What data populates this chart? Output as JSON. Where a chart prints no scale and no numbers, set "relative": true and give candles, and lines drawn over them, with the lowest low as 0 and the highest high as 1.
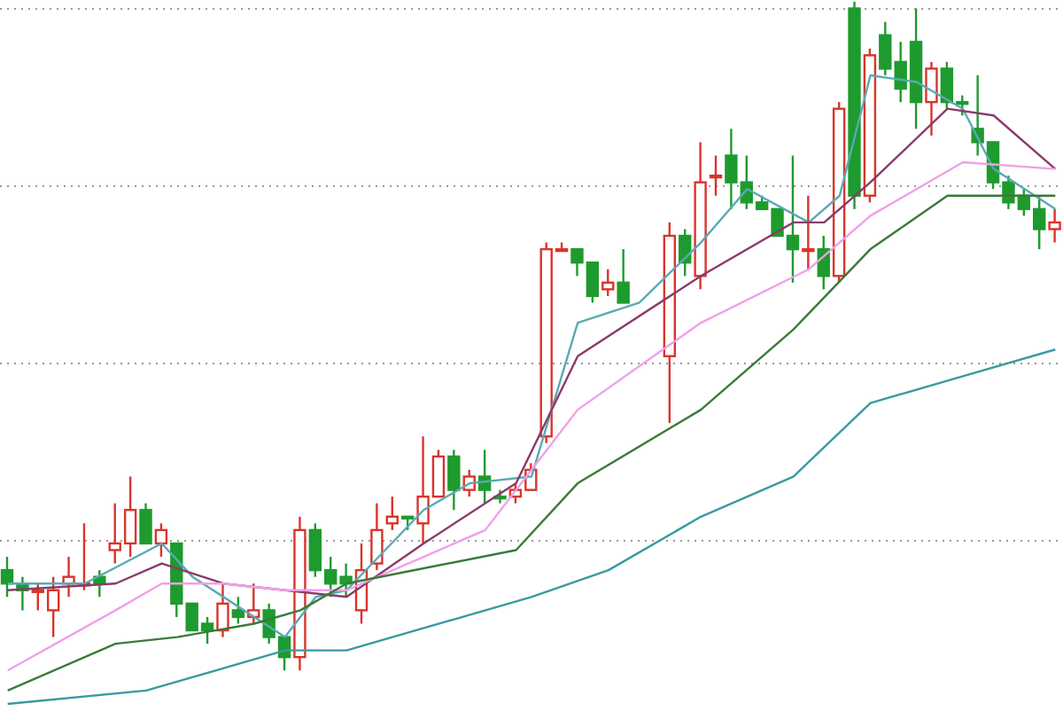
{
  "chart_data": {
    "type": "candlestick",
    "relative": true,
    "grid": true,
    "tick_labels": false,
    "categories": [
      null,
      null,
      null,
      null,
      null,
      null,
      null,
      null,
      null,
      null,
      null,
      null,
      null,
      null,
      null,
      null,
      null,
      null,
      null,
      null,
      null,
      null,
      null,
      null,
      null,
      null,
      null,
      null,
      null,
      null,
      null,
      null,
      null,
      null,
      null,
      null,
      null,
      null,
      null,
      null,
      null,
      null,
      null,
      null,
      null,
      null,
      null,
      null,
      null,
      null,
      null,
      null,
      null,
      null,
      null,
      null,
      null,
      null,
      null,
      null,
      null,
      null,
      null,
      null,
      null,
      null,
      null,
      null,
      null
    ],
    "ohlc": [
      [
        0.15,
        0.17,
        0.11,
        0.13
      ],
      [
        0.13,
        0.14,
        0.09,
        0.12
      ],
      [
        0.12,
        0.13,
        0.09,
        0.12
      ],
      [
        0.09,
        0.14,
        0.05,
        0.12
      ],
      [
        0.13,
        0.17,
        0.11,
        0.14
      ],
      [
        0.13,
        0.22,
        0.12,
        0.13
      ],
      [
        0.14,
        0.15,
        0.11,
        0.13
      ],
      [
        0.18,
        0.25,
        0.16,
        0.19
      ],
      [
        0.19,
        0.29,
        0.17,
        0.24
      ],
      [
        0.24,
        0.25,
        0.19,
        0.19
      ],
      [
        0.19,
        0.22,
        0.17,
        0.21
      ],
      [
        0.19,
        0.19,
        0.08,
        0.1
      ],
      [
        0.1,
        0.1,
        0.06,
        0.06
      ],
      [
        0.07,
        0.08,
        0.04,
        0.06
      ],
      [
        0.06,
        0.13,
        0.05,
        0.1
      ],
      [
        0.09,
        0.11,
        0.07,
        0.08
      ],
      [
        0.08,
        0.13,
        0.07,
        0.09
      ],
      [
        0.09,
        0.1,
        0.04,
        0.05
      ],
      [
        0.05,
        0.05,
        0,
        0.02
      ],
      [
        0.02,
        0.23,
        0,
        0.21
      ],
      [
        0.21,
        0.22,
        0.14,
        0.15
      ],
      [
        0.15,
        0.17,
        0.11,
        0.13
      ],
      [
        0.14,
        0.16,
        0.11,
        0.13
      ],
      [
        0.09,
        0.19,
        0.07,
        0.15
      ],
      [
        0.16,
        0.25,
        0.15,
        0.21
      ],
      [
        0.22,
        0.26,
        0.21,
        0.23
      ],
      [
        0.23,
        0.23,
        0.21,
        0.23
      ],
      [
        0.22,
        0.35,
        0.19,
        0.26
      ],
      [
        0.26,
        0.33,
        0.26,
        0.32
      ],
      [
        0.32,
        0.33,
        0.24,
        0.27
      ],
      [
        0.27,
        0.3,
        0.26,
        0.29
      ],
      [
        0.29,
        0.33,
        0.25,
        0.27
      ],
      [
        0.26,
        0.27,
        0.25,
        0.26
      ],
      [
        0.26,
        0.28,
        0.25,
        0.27
      ],
      [
        0.27,
        0.31,
        0.27,
        0.3
      ],
      [
        0.35,
        0.64,
        0.34,
        0.63
      ],
      [
        0.63,
        0.64,
        0.63,
        0.63
      ],
      [
        0.63,
        0.63,
        0.59,
        0.61
      ],
      [
        0.61,
        0.61,
        0.55,
        0.56
      ],
      [
        0.57,
        0.6,
        0.56,
        0.58
      ],
      [
        0.58,
        0.63,
        0.55,
        0.55
      ],
      null,
      null,
      [
        0.47,
        0.67,
        0.37,
        0.65
      ],
      [
        0.65,
        0.66,
        0.59,
        0.61
      ],
      [
        0.59,
        0.79,
        0.57,
        0.73
      ],
      [
        0.74,
        0.77,
        0.71,
        0.74
      ],
      [
        0.77,
        0.81,
        0.69,
        0.73
      ],
      [
        0.73,
        0.77,
        0.69,
        0.7
      ],
      [
        0.7,
        0.71,
        0.69,
        0.69
      ],
      [
        0.69,
        0.69,
        0.65,
        0.65
      ],
      [
        0.65,
        0.77,
        0.58,
        0.63
      ],
      [
        0.63,
        0.71,
        0.6,
        0.63
      ],
      [
        0.63,
        0.65,
        0.57,
        0.59
      ],
      [
        0.59,
        0.85,
        0.58,
        0.84
      ],
      [
        0.99,
        1,
        0.69,
        0.71
      ],
      [
        0.71,
        0.93,
        0.7,
        0.92
      ],
      [
        0.95,
        0.97,
        0.89,
        0.9
      ],
      [
        0.91,
        0.94,
        0.85,
        0.87
      ],
      [
        0.94,
        0.99,
        0.81,
        0.85
      ],
      [
        0.85,
        0.91,
        0.8,
        0.9
      ],
      [
        0.9,
        0.91,
        0.84,
        0.85
      ],
      [
        0.85,
        0.86,
        0.83,
        0.85
      ],
      [
        0.81,
        0.89,
        0.77,
        0.79
      ],
      [
        0.79,
        0.79,
        0.72,
        0.73
      ],
      [
        0.73,
        0.74,
        0.69,
        0.7
      ],
      [
        0.71,
        0.72,
        0.68,
        0.69
      ],
      [
        0.69,
        0.71,
        0.63,
        0.66
      ],
      [
        0.66,
        0.69,
        0.64,
        0.67
      ]
    ],
    "colors": [
      "#1e9b2e",
      "#1e9b2e",
      "#d9342b",
      "#d9342b",
      "#d9342b",
      "#d9342b",
      "#1e9b2e",
      "#d9342b",
      "#d9342b",
      "#1e9b2e",
      "#d9342b",
      "#1e9b2e",
      "#1e9b2e",
      "#1e9b2e",
      "#d9342b",
      "#1e9b2e",
      "#d9342b",
      "#1e9b2e",
      "#1e9b2e",
      "#d9342b",
      "#1e9b2e",
      "#1e9b2e",
      "#1e9b2e",
      "#d9342b",
      "#d9342b",
      "#d9342b",
      "#1e9b2e",
      "#d9342b",
      "#d9342b",
      "#1e9b2e",
      "#d9342b",
      "#1e9b2e",
      "#1e9b2e",
      "#d9342b",
      "#d9342b",
      "#d9342b",
      "#d9342b",
      "#1e9b2e",
      "#1e9b2e",
      "#d9342b",
      "#1e9b2e",
      null,
      null,
      "#d9342b",
      "#1e9b2e",
      "#d9342b",
      "#d9342b",
      "#1e9b2e",
      "#1e9b2e",
      "#1e9b2e",
      "#1e9b2e",
      "#1e9b2e",
      "#d9342b",
      "#1e9b2e",
      "#d9342b",
      "#1e9b2e",
      "#d9342b",
      "#1e9b2e",
      "#1e9b2e",
      "#1e9b2e",
      "#d9342b",
      "#1e9b2e",
      "#1e9b2e",
      "#1e9b2e",
      "#1e9b2e",
      "#1e9b2e",
      "#1e9b2e",
      "#1e9b2e",
      "#d9342b"
    ],
    "series": [
      {
        "type": "line",
        "color": "#5aa9b5",
        "values": [
          0.13,
          null,
          null,
          null,
          null,
          0.13,
          null,
          null,
          null,
          null,
          0.19,
          null,
          0.14,
          null,
          null,
          null,
          0.08,
          null,
          0.05,
          null,
          0.11,
          null,
          0.12,
          null,
          null,
          null,
          null,
          0.24,
          null,
          null,
          0.28,
          null,
          null,
          null,
          0.29,
          null,
          null,
          0.52,
          null,
          null,
          null,
          0.55,
          null,
          null,
          null,
          0.64,
          null,
          null,
          0.72,
          null,
          null,
          null,
          0.67,
          null,
          0.71,
          null,
          0.89,
          null,
          null,
          0.88,
          null,
          null,
          0.84,
          null,
          0.75,
          null,
          null,
          null,
          0.69
        ]
      },
      {
        "type": "line",
        "color": "#8a3b6b",
        "values": [
          0.12,
          null,
          null,
          null,
          null,
          null,
          null,
          0.13,
          null,
          null,
          0.16,
          null,
          null,
          null,
          0.13,
          null,
          null,
          null,
          0.12,
          null,
          null,
          null,
          0.11,
          null,
          null,
          null,
          null,
          0.19,
          null,
          null,
          null,
          null,
          null,
          0.28,
          null,
          null,
          null,
          0.47,
          null,
          null,
          null,
          null,
          null,
          null,
          null,
          0.59,
          null,
          null,
          null,
          null,
          null,
          0.67,
          null,
          0.67,
          null,
          null,
          0.73,
          null,
          null,
          null,
          null,
          0.84,
          null,
          null,
          0.83,
          null,
          null,
          null,
          0.75
        ]
      },
      {
        "type": "line",
        "color": "#f0a0e8",
        "values": [
          0,
          null,
          null,
          null,
          null,
          null,
          null,
          0.09,
          null,
          null,
          0.13,
          null,
          null,
          null,
          0.13,
          null,
          null,
          null,
          0.12,
          null,
          null,
          null,
          0.12,
          null,
          null,
          null,
          null,
          0.17,
          null,
          null,
          null,
          0.21,
          null,
          null,
          null,
          null,
          null,
          0.39,
          null,
          null,
          null,
          null,
          null,
          null,
          null,
          0.52,
          null,
          null,
          null,
          null,
          null,
          null,
          0.6,
          null,
          null,
          null,
          0.68,
          null,
          null,
          null,
          null,
          null,
          0.76,
          null,
          null,
          null,
          null,
          null,
          0.75
        ]
      },
      {
        "type": "line",
        "color": "#3a7a3a",
        "values": [
          -0.03,
          null,
          null,
          null,
          null,
          null,
          null,
          0.04,
          null,
          null,
          null,
          0.05,
          null,
          null,
          null,
          null,
          0.07,
          null,
          null,
          0.09,
          null,
          null,
          0.13,
          null,
          null,
          null,
          null,
          null,
          null,
          null,
          null,
          null,
          null,
          0.18,
          null,
          null,
          null,
          0.28,
          null,
          null,
          null,
          null,
          null,
          null,
          null,
          0.39,
          null,
          null,
          null,
          null,
          null,
          0.51,
          null,
          null,
          null,
          null,
          0.63,
          null,
          null,
          null,
          null,
          0.71,
          null,
          null,
          null,
          null,
          null,
          null,
          0.71
        ]
      },
      {
        "type": "line",
        "color": "#3a9aa0",
        "values": [
          -0.05,
          null,
          null,
          null,
          null,
          null,
          null,
          null,
          null,
          -0.03,
          null,
          null,
          null,
          null,
          null,
          null,
          null,
          null,
          0.03,
          null,
          null,
          null,
          0.03,
          null,
          null,
          null,
          null,
          null,
          null,
          null,
          null,
          null,
          null,
          null,
          0.11,
          null,
          null,
          null,
          null,
          0.15,
          null,
          null,
          null,
          null,
          null,
          0.23,
          null,
          null,
          null,
          null,
          null,
          0.29,
          null,
          null,
          null,
          null,
          0.4,
          null,
          null,
          null,
          null,
          null,
          0.44,
          null,
          null,
          null,
          null,
          null,
          0.48
        ]
      }
    ]
  }
}
